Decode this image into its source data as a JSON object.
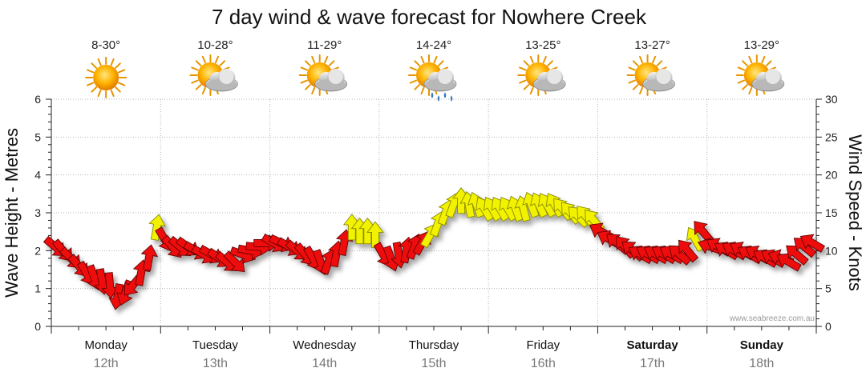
{
  "chart_data": {
    "type": "scatter",
    "title": "7 day wind & wave forecast for Nowhere Creek",
    "ylabel_left": "Wave Height - Metres",
    "ylabel_right": "Wind Speed - Knots",
    "y_left_range": [
      0,
      6
    ],
    "y_left_ticks": [
      "0",
      "1",
      "2",
      "3",
      "4",
      "5",
      "6"
    ],
    "y_right_range": [
      0,
      30
    ],
    "y_right_ticks": [
      "0",
      "5",
      "10",
      "15",
      "20",
      "25",
      "30"
    ],
    "grid": true,
    "credit": "www.seabreeze.com.au",
    "legend": {
      "red_color": "#ee1111",
      "yellow_color": "#f2f200",
      "outline_color": "#660000"
    },
    "days": [
      {
        "day": "Monday",
        "date": "12th",
        "temp": "8-30°",
        "icon": "sun-icon",
        "weekend": false
      },
      {
        "day": "Tuesday",
        "date": "13th",
        "temp": "10-28°",
        "icon": "sun-cloud-icon",
        "weekend": false
      },
      {
        "day": "Wednesday",
        "date": "14th",
        "temp": "11-29°",
        "icon": "sun-cloud-icon",
        "weekend": false
      },
      {
        "day": "Thursday",
        "date": "15th",
        "temp": "14-24°",
        "icon": "sun-cloud-rain-icon",
        "weekend": false
      },
      {
        "day": "Friday",
        "date": "16th",
        "temp": "13-25°",
        "icon": "sun-cloud-icon",
        "weekend": false
      },
      {
        "day": "Saturday",
        "date": "17th",
        "temp": "13-27°",
        "icon": "sun-cloud-icon",
        "weekend": true
      },
      {
        "day": "Sunday",
        "date": "18th",
        "temp": "13-29°",
        "icon": "sun-cloud-icon",
        "weekend": true
      }
    ],
    "wind_series_note_units": "knots, direction in compass degrees the arrow points",
    "wind_days": [
      [
        [
          10.5,
          130,
          "r"
        ],
        [
          10,
          140,
          "r"
        ],
        [
          9,
          135,
          "r"
        ],
        [
          8,
          140,
          "r"
        ],
        [
          7,
          150,
          "r"
        ],
        [
          6.5,
          160,
          "r"
        ],
        [
          6,
          170,
          "r"
        ],
        [
          5.5,
          175,
          "r"
        ],
        [
          4,
          190,
          "r"
        ],
        [
          4.5,
          200,
          "r"
        ],
        [
          5.5,
          220,
          "r"
        ],
        [
          7,
          10,
          "r"
        ],
        [
          9,
          10,
          "r"
        ],
        [
          13,
          10,
          "y"
        ]
      ],
      [
        [
          11.5,
          150,
          "r"
        ],
        [
          10.5,
          140,
          "r"
        ],
        [
          10.5,
          130,
          "r"
        ],
        [
          10.5,
          125,
          "r"
        ],
        [
          10,
          120,
          "r"
        ],
        [
          9.5,
          120,
          "r"
        ],
        [
          9.5,
          120,
          "r"
        ],
        [
          9,
          125,
          "r"
        ],
        [
          8.5,
          130,
          "r"
        ],
        [
          8.5,
          135,
          "r"
        ],
        [
          9.5,
          110,
          "r"
        ],
        [
          10,
          100,
          "r"
        ],
        [
          10.5,
          95,
          "r"
        ],
        [
          11,
          90,
          "r"
        ]
      ],
      [
        [
          11,
          120,
          "r"
        ],
        [
          11,
          115,
          "r"
        ],
        [
          10.5,
          120,
          "r"
        ],
        [
          10,
          130,
          "r"
        ],
        [
          9.5,
          140,
          "r"
        ],
        [
          9,
          150,
          "r"
        ],
        [
          8.5,
          160,
          "r"
        ],
        [
          8.5,
          20,
          "r"
        ],
        [
          9.5,
          10,
          "r"
        ],
        [
          11,
          10,
          "r"
        ],
        [
          13,
          0,
          "y"
        ],
        [
          12.5,
          0,
          "y"
        ],
        [
          12.5,
          0,
          "y"
        ],
        [
          12,
          0,
          "y"
        ]
      ],
      [
        [
          9.5,
          150,
          "r"
        ],
        [
          9,
          160,
          "r"
        ],
        [
          9.5,
          170,
          "r"
        ],
        [
          10,
          10,
          "r"
        ],
        [
          10.5,
          20,
          "r"
        ],
        [
          11,
          30,
          "r"
        ],
        [
          12,
          30,
          "y"
        ],
        [
          13.5,
          20,
          "y"
        ],
        [
          15,
          20,
          "y"
        ],
        [
          16,
          20,
          "y"
        ],
        [
          16.5,
          0,
          "y"
        ],
        [
          16,
          350,
          "y"
        ],
        [
          16,
          340,
          "y"
        ],
        [
          15.5,
          330,
          "y"
        ]
      ],
      [
        [
          15.5,
          330,
          "y"
        ],
        [
          15.5,
          330,
          "y"
        ],
        [
          15.5,
          330,
          "y"
        ],
        [
          15.5,
          340,
          "y"
        ],
        [
          15.5,
          345,
          "y"
        ],
        [
          16,
          340,
          "y"
        ],
        [
          16,
          335,
          "y"
        ],
        [
          16,
          330,
          "y"
        ],
        [
          16,
          330,
          "y"
        ],
        [
          15.5,
          320,
          "y"
        ],
        [
          15,
          320,
          "y"
        ],
        [
          14.5,
          315,
          "y"
        ],
        [
          14.5,
          320,
          "y"
        ],
        [
          14,
          320,
          "y"
        ]
      ],
      [
        [
          12.5,
          300,
          "r"
        ],
        [
          11.5,
          300,
          "r"
        ],
        [
          11,
          310,
          "r"
        ],
        [
          10.5,
          320,
          "r"
        ],
        [
          10,
          310,
          "r"
        ],
        [
          9.5,
          300,
          "r"
        ],
        [
          9.5,
          300,
          "r"
        ],
        [
          9.5,
          300,
          "r"
        ],
        [
          9.5,
          300,
          "r"
        ],
        [
          9.5,
          300,
          "r"
        ],
        [
          9.5,
          310,
          "r"
        ],
        [
          10,
          320,
          "r"
        ],
        [
          11.5,
          330,
          "y"
        ],
        [
          12.5,
          320,
          "r"
        ]
      ],
      [
        [
          10.5,
          290,
          "r"
        ],
        [
          10.5,
          300,
          "r"
        ],
        [
          10,
          300,
          "r"
        ],
        [
          10,
          300,
          "r"
        ],
        [
          10,
          300,
          "r"
        ],
        [
          9.5,
          300,
          "r"
        ],
        [
          9.5,
          300,
          "r"
        ],
        [
          9,
          300,
          "r"
        ],
        [
          9,
          300,
          "r"
        ],
        [
          9,
          290,
          "r"
        ],
        [
          8.5,
          300,
          "r"
        ],
        [
          9.5,
          310,
          "r"
        ],
        [
          10.5,
          310,
          "r"
        ],
        [
          11,
          300,
          "r"
        ]
      ]
    ]
  }
}
